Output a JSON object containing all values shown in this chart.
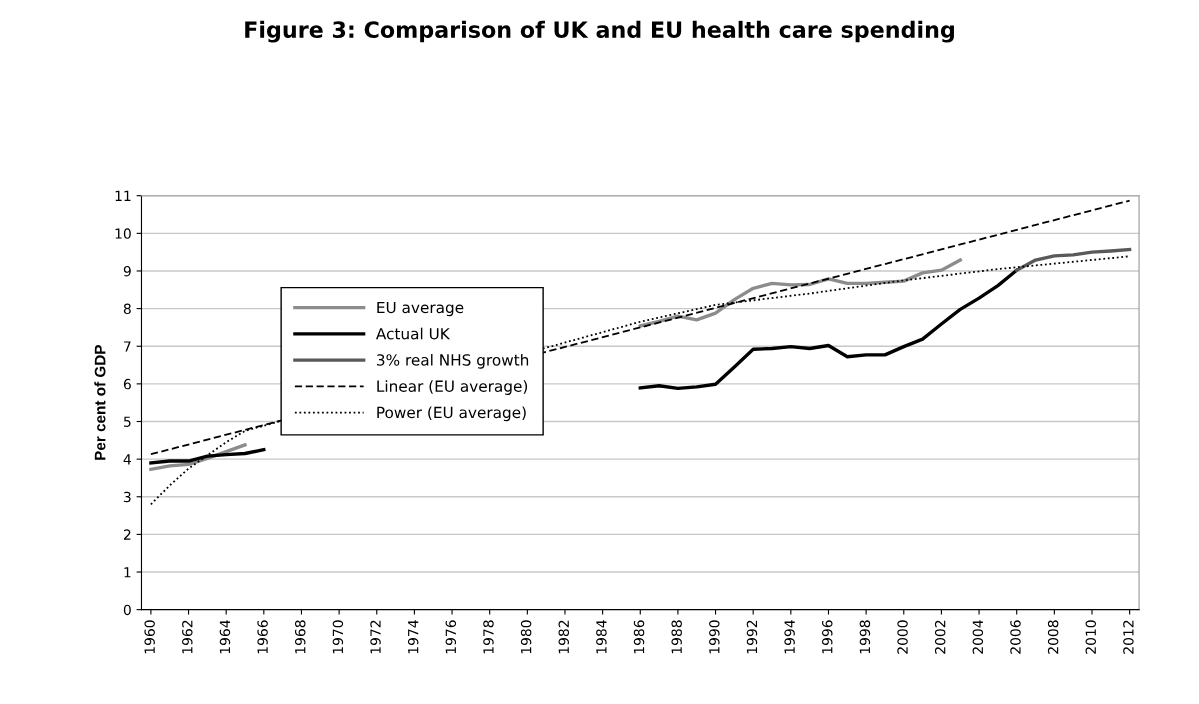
{
  "chart_data": {
    "type": "line",
    "title": "Figure 3: Comparison of UK and EU health care spending",
    "ylabel": "Per cent of GDP",
    "series": [
      {
        "name": "EU average",
        "color": "#8c8c8c",
        "x": [
          1960,
          1961,
          1962,
          1963,
          1964,
          1965,
          1975,
          1986,
          1987,
          1988,
          1989,
          1990,
          1991,
          1992,
          1993,
          1994,
          1995,
          1996,
          1997,
          1998,
          1999,
          2000,
          2001,
          2002,
          2003
        ],
        "values": [
          3.73,
          3.82,
          3.86,
          4.02,
          4.2,
          4.38,
          null,
          7.54,
          7.66,
          7.8,
          7.7,
          7.88,
          8.24,
          8.54,
          8.67,
          8.63,
          8.64,
          8.79,
          8.67,
          8.67,
          8.7,
          8.73,
          8.95,
          9.02,
          9.29
        ]
      },
      {
        "name": "Actual UK",
        "color": "#000000",
        "x": [
          1960,
          1961,
          1962,
          1963,
          1964,
          1965,
          1966,
          1975,
          1986,
          1987,
          1988,
          1989,
          1990,
          1991,
          1992,
          1993,
          1994,
          1995,
          1996,
          1997,
          1998,
          1999,
          2000,
          2001,
          2002,
          2003,
          2004,
          2005,
          2006
        ],
        "values": [
          3.9,
          3.95,
          3.95,
          4.08,
          4.12,
          4.15,
          4.25,
          null,
          5.89,
          5.95,
          5.88,
          5.92,
          5.99,
          6.45,
          6.92,
          6.94,
          6.99,
          6.94,
          7.02,
          6.72,
          6.77,
          6.77,
          6.99,
          7.19,
          7.59,
          7.98,
          8.28,
          8.61,
          9.02
        ]
      },
      {
        "name": "3% real NHS growth",
        "color": "#595959",
        "x": [
          2006,
          2007,
          2008,
          2009,
          2010,
          2011,
          2012
        ],
        "values": [
          9.02,
          9.29,
          9.4,
          9.43,
          9.5,
          9.53,
          9.57
        ]
      },
      {
        "name": "Linear (EU average)",
        "color": "#000000",
        "line_style": "dashed",
        "x": [
          1960,
          2012
        ],
        "values": [
          4.13,
          10.87
        ]
      },
      {
        "name": "Power (EU average)",
        "color": "#000000",
        "line_style": "dotted",
        "x": [
          1960,
          1961,
          1962,
          1963,
          1964,
          1965,
          1986,
          1990,
          1995,
          2000,
          2005,
          2012
        ],
        "values": [
          2.8,
          3.3,
          3.75,
          4.1,
          4.45,
          4.75,
          7.65,
          8.1,
          8.4,
          8.75,
          9.05,
          9.39
        ]
      }
    ],
    "xlim": [
      1959.5,
      2012.5
    ],
    "xticks": [
      1960,
      1962,
      1964,
      1966,
      1968,
      1970,
      1972,
      1974,
      1976,
      1978,
      1980,
      1982,
      1984,
      1986,
      1988,
      1990,
      1992,
      1994,
      1996,
      1998,
      2000,
      2002,
      2004,
      2006,
      2008,
      2010,
      2012
    ],
    "ylim": [
      0,
      11
    ],
    "yticks": [
      0,
      1,
      2,
      3,
      4,
      5,
      6,
      7,
      8,
      9,
      10,
      11
    ],
    "grid": "y",
    "legend": "center left",
    "marker": "none",
    "line_style": "solid"
  }
}
